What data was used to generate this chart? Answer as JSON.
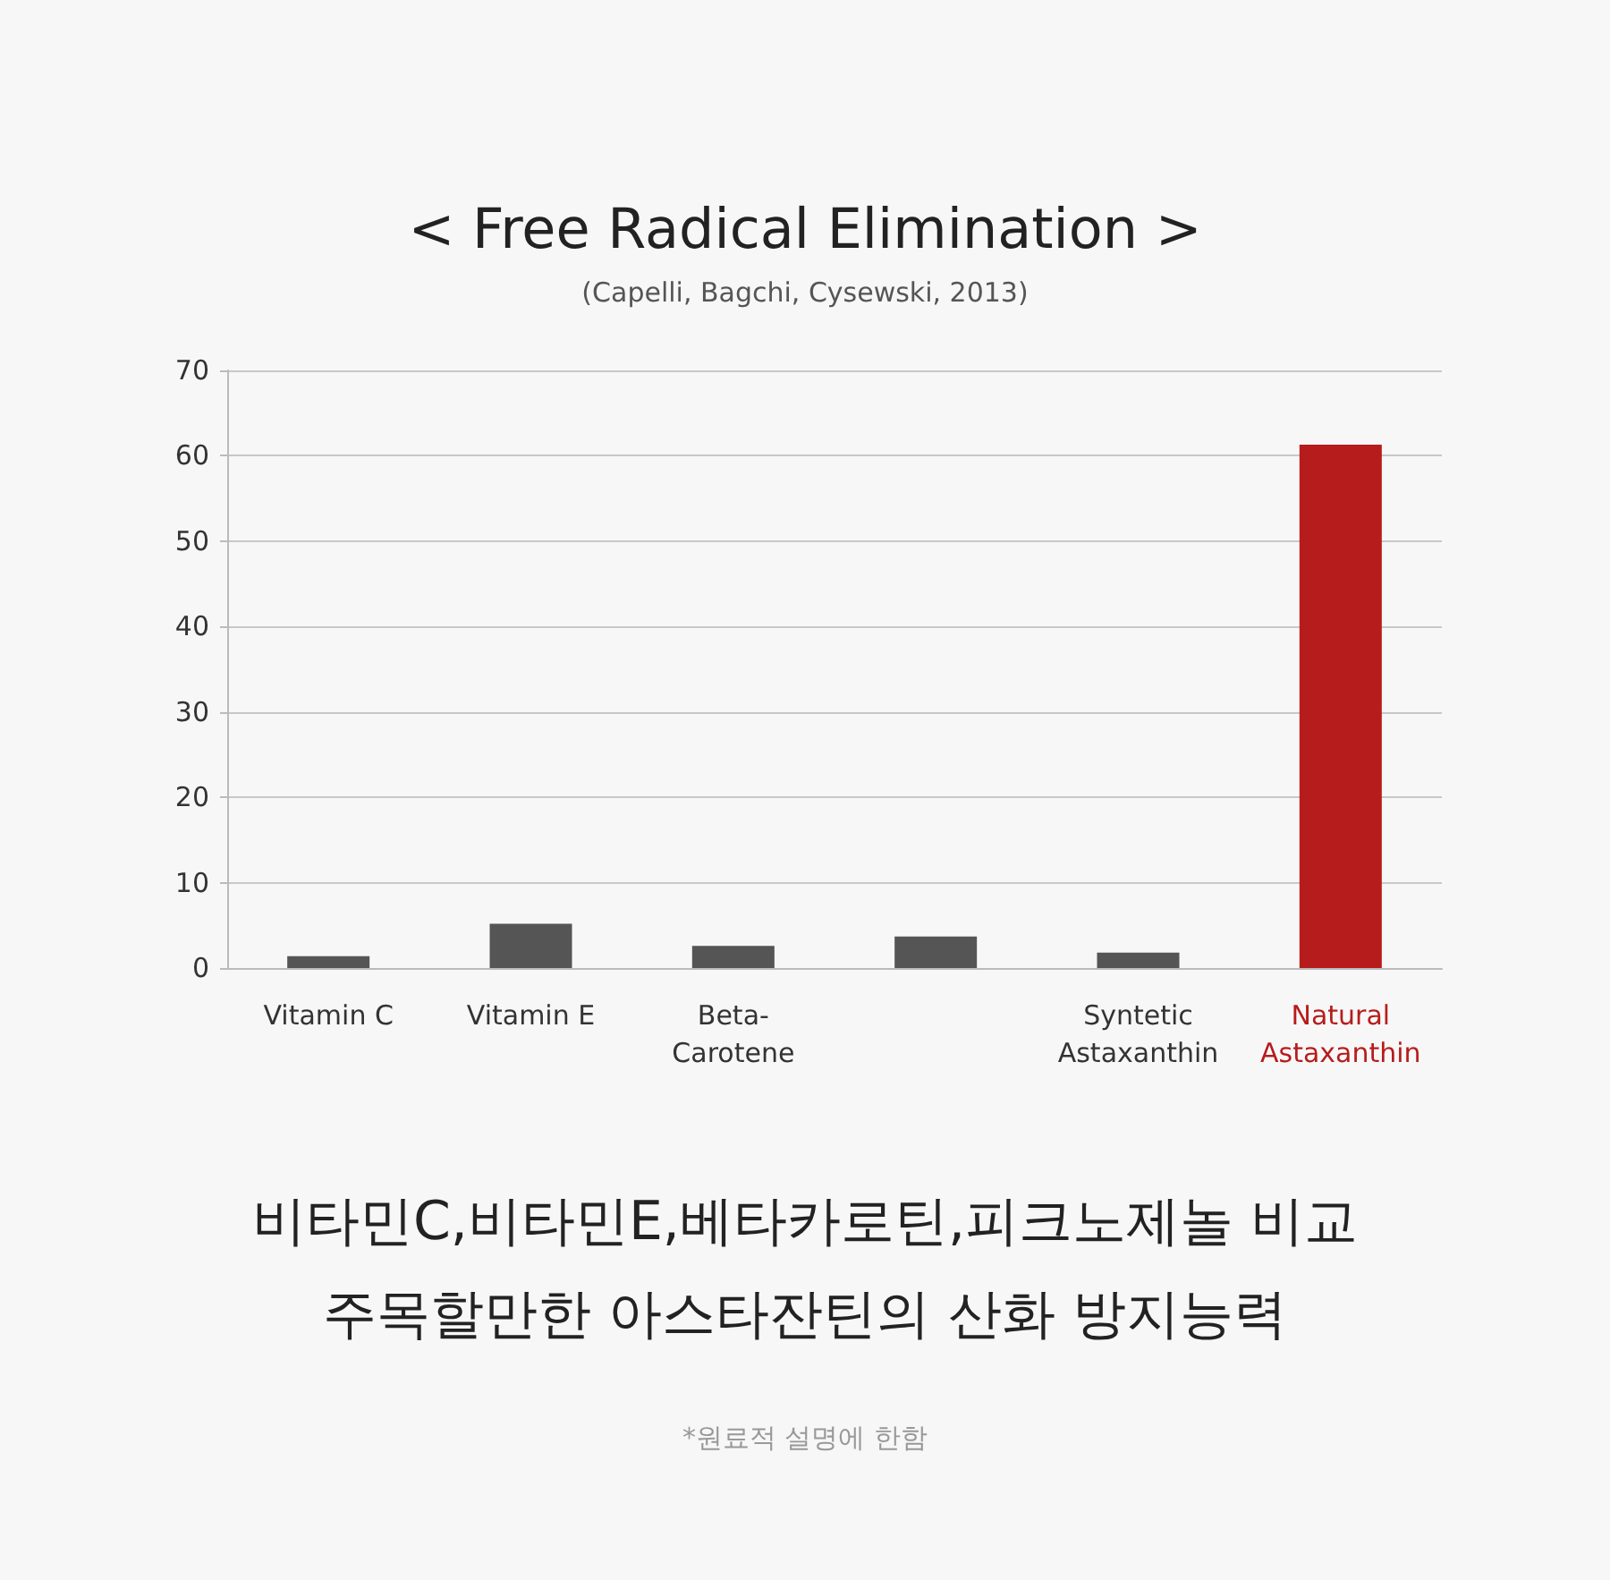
{
  "chart_data": {
    "type": "bar",
    "title": "< Free Radical Elimination >",
    "subtitle": "(Capelli, Bagchi, Cysewski, 2013)",
    "categories": [
      "Vitamin C",
      "Vitamin E",
      "Beta-\nCarotene",
      null,
      "Syntetic\nAstaxanthin",
      "Natural\nAstaxanthin"
    ],
    "values": [
      1.4,
      5.2,
      2.6,
      3.7,
      1.8,
      61.3
    ],
    "colors": [
      "#555555",
      "#555555",
      "#555555",
      "#555555",
      "#555555",
      "#b71c1c"
    ],
    "ylim": [
      0,
      70
    ],
    "yticks": [
      0,
      10,
      20,
      30,
      40,
      50,
      60,
      70
    ],
    "grid": "y",
    "annotations": [
      "비타민C,비타민E,베타카로틴,피크노제놀 비교",
      "주목할만한 아스타잔틴의 산화 방지능력",
      "*원료적 설명에 한함"
    ]
  }
}
